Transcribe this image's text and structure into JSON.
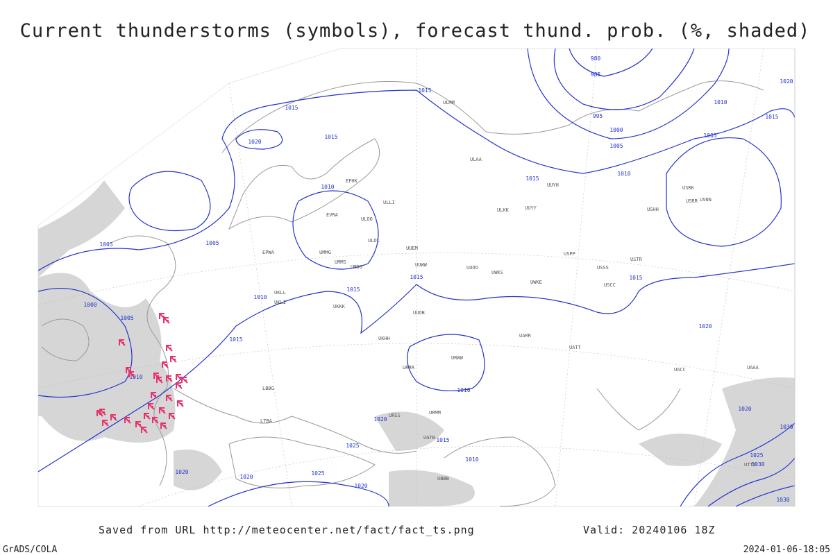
{
  "title": "Current thunderstorms (symbols), forecast thund. prob. (%, shaded)",
  "footer": {
    "saved_from": "Saved from URL http://meteocenter.net/fact/fact_ts.png",
    "valid": "Valid: 20240106 18Z",
    "credit": "GrADS/COLA",
    "timestamp": "2024-01-06-18:05"
  },
  "isobar_labels": [
    "1015",
    "1015",
    "1020",
    "1015",
    "1010",
    "1005",
    "1005",
    "1000",
    "1005",
    "1010",
    "1015",
    "1015",
    "1010",
    "1015",
    "1010",
    "1015",
    "1010",
    "1015",
    "1005",
    "1000",
    "1005",
    "995",
    "985",
    "980",
    "1010",
    "1015",
    "1020",
    "1020",
    "1020",
    "1020",
    "1015",
    "1025",
    "1025",
    "1010",
    "1020",
    "1020",
    "1020",
    "1030",
    "1025",
    "1030",
    "1030"
  ],
  "stations": [
    "EFHK",
    "ULLI",
    "ULOO",
    "EVRA",
    "ULOL",
    "UMMS",
    "UMOO",
    "UMMG",
    "EPWA",
    "UKLL",
    "UKLI",
    "UUEM",
    "UUWW",
    "UUOO",
    "UWKS",
    "UWKE",
    "USSS",
    "USCC",
    "USTR",
    "USPP",
    "ULKK",
    "UUYY",
    "UUYH",
    "ULAA",
    "ULMM",
    "USRR",
    "USRK",
    "USNN",
    "USHH",
    "UKKK",
    "UUOB",
    "UKHH",
    "URWW",
    "URRR",
    "UATT",
    "UARR",
    "UACC",
    "UAAA",
    "URMM",
    "URSS",
    "UGTB",
    "UBBB",
    "UTTT",
    "LTBA",
    "LBBG"
  ]
}
